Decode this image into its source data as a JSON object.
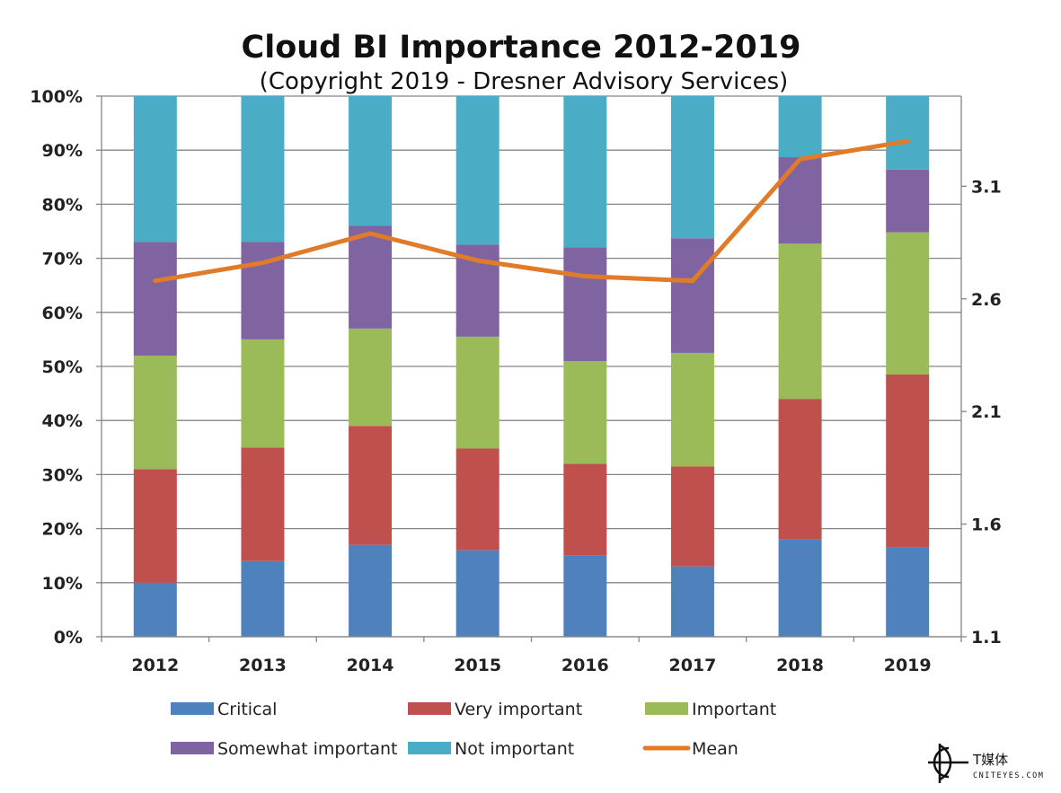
{
  "chart_data": {
    "type": "bar",
    "stacked": true,
    "title": "Cloud BI Importance 2012-2019",
    "subtitle": "(Copyright 2019 - Dresner Advisory Services)",
    "categories": [
      "2012",
      "2013",
      "2014",
      "2015",
      "2016",
      "2017",
      "2018",
      "2019"
    ],
    "ylim": [
      0,
      100
    ],
    "yticks": [
      "0%",
      "10%",
      "20%",
      "30%",
      "40%",
      "50%",
      "60%",
      "70%",
      "80%",
      "90%",
      "100%"
    ],
    "y2lim": [
      1.1,
      3.5
    ],
    "y2ticks": [
      "1.1",
      "1.6",
      "2.1",
      "2.6",
      "3.1"
    ],
    "grid": true,
    "legend_position": "bottom",
    "series": [
      {
        "name": "Critical",
        "color": "#4F81BD",
        "values": [
          10,
          14,
          17,
          16,
          15,
          13,
          18,
          16.5
        ]
      },
      {
        "name": "Very important",
        "color": "#C0504D",
        "values": [
          21,
          21,
          22,
          18.8,
          17,
          18.5,
          26,
          32
        ]
      },
      {
        "name": "Important",
        "color": "#9BBB59",
        "values": [
          21,
          20,
          18,
          20.7,
          19,
          21,
          28.7,
          26.3
        ]
      },
      {
        "name": "Somewhat important",
        "color": "#8064A2",
        "values": [
          21,
          18,
          19,
          17,
          21,
          21.2,
          16,
          11.6
        ]
      },
      {
        "name": "Not important",
        "color": "#4BACC6",
        "values": [
          27,
          27,
          24,
          27.5,
          28,
          26.3,
          11.3,
          13.6
        ]
      }
    ],
    "line_series": {
      "name": "Mean",
      "color": "#E07B2A",
      "axis": "right",
      "values": [
        2.68,
        2.76,
        2.89,
        2.77,
        2.7,
        2.68,
        3.22,
        3.3
      ]
    }
  },
  "logo": {
    "text": "T媒体",
    "sub": "CNITEYES.COM"
  }
}
